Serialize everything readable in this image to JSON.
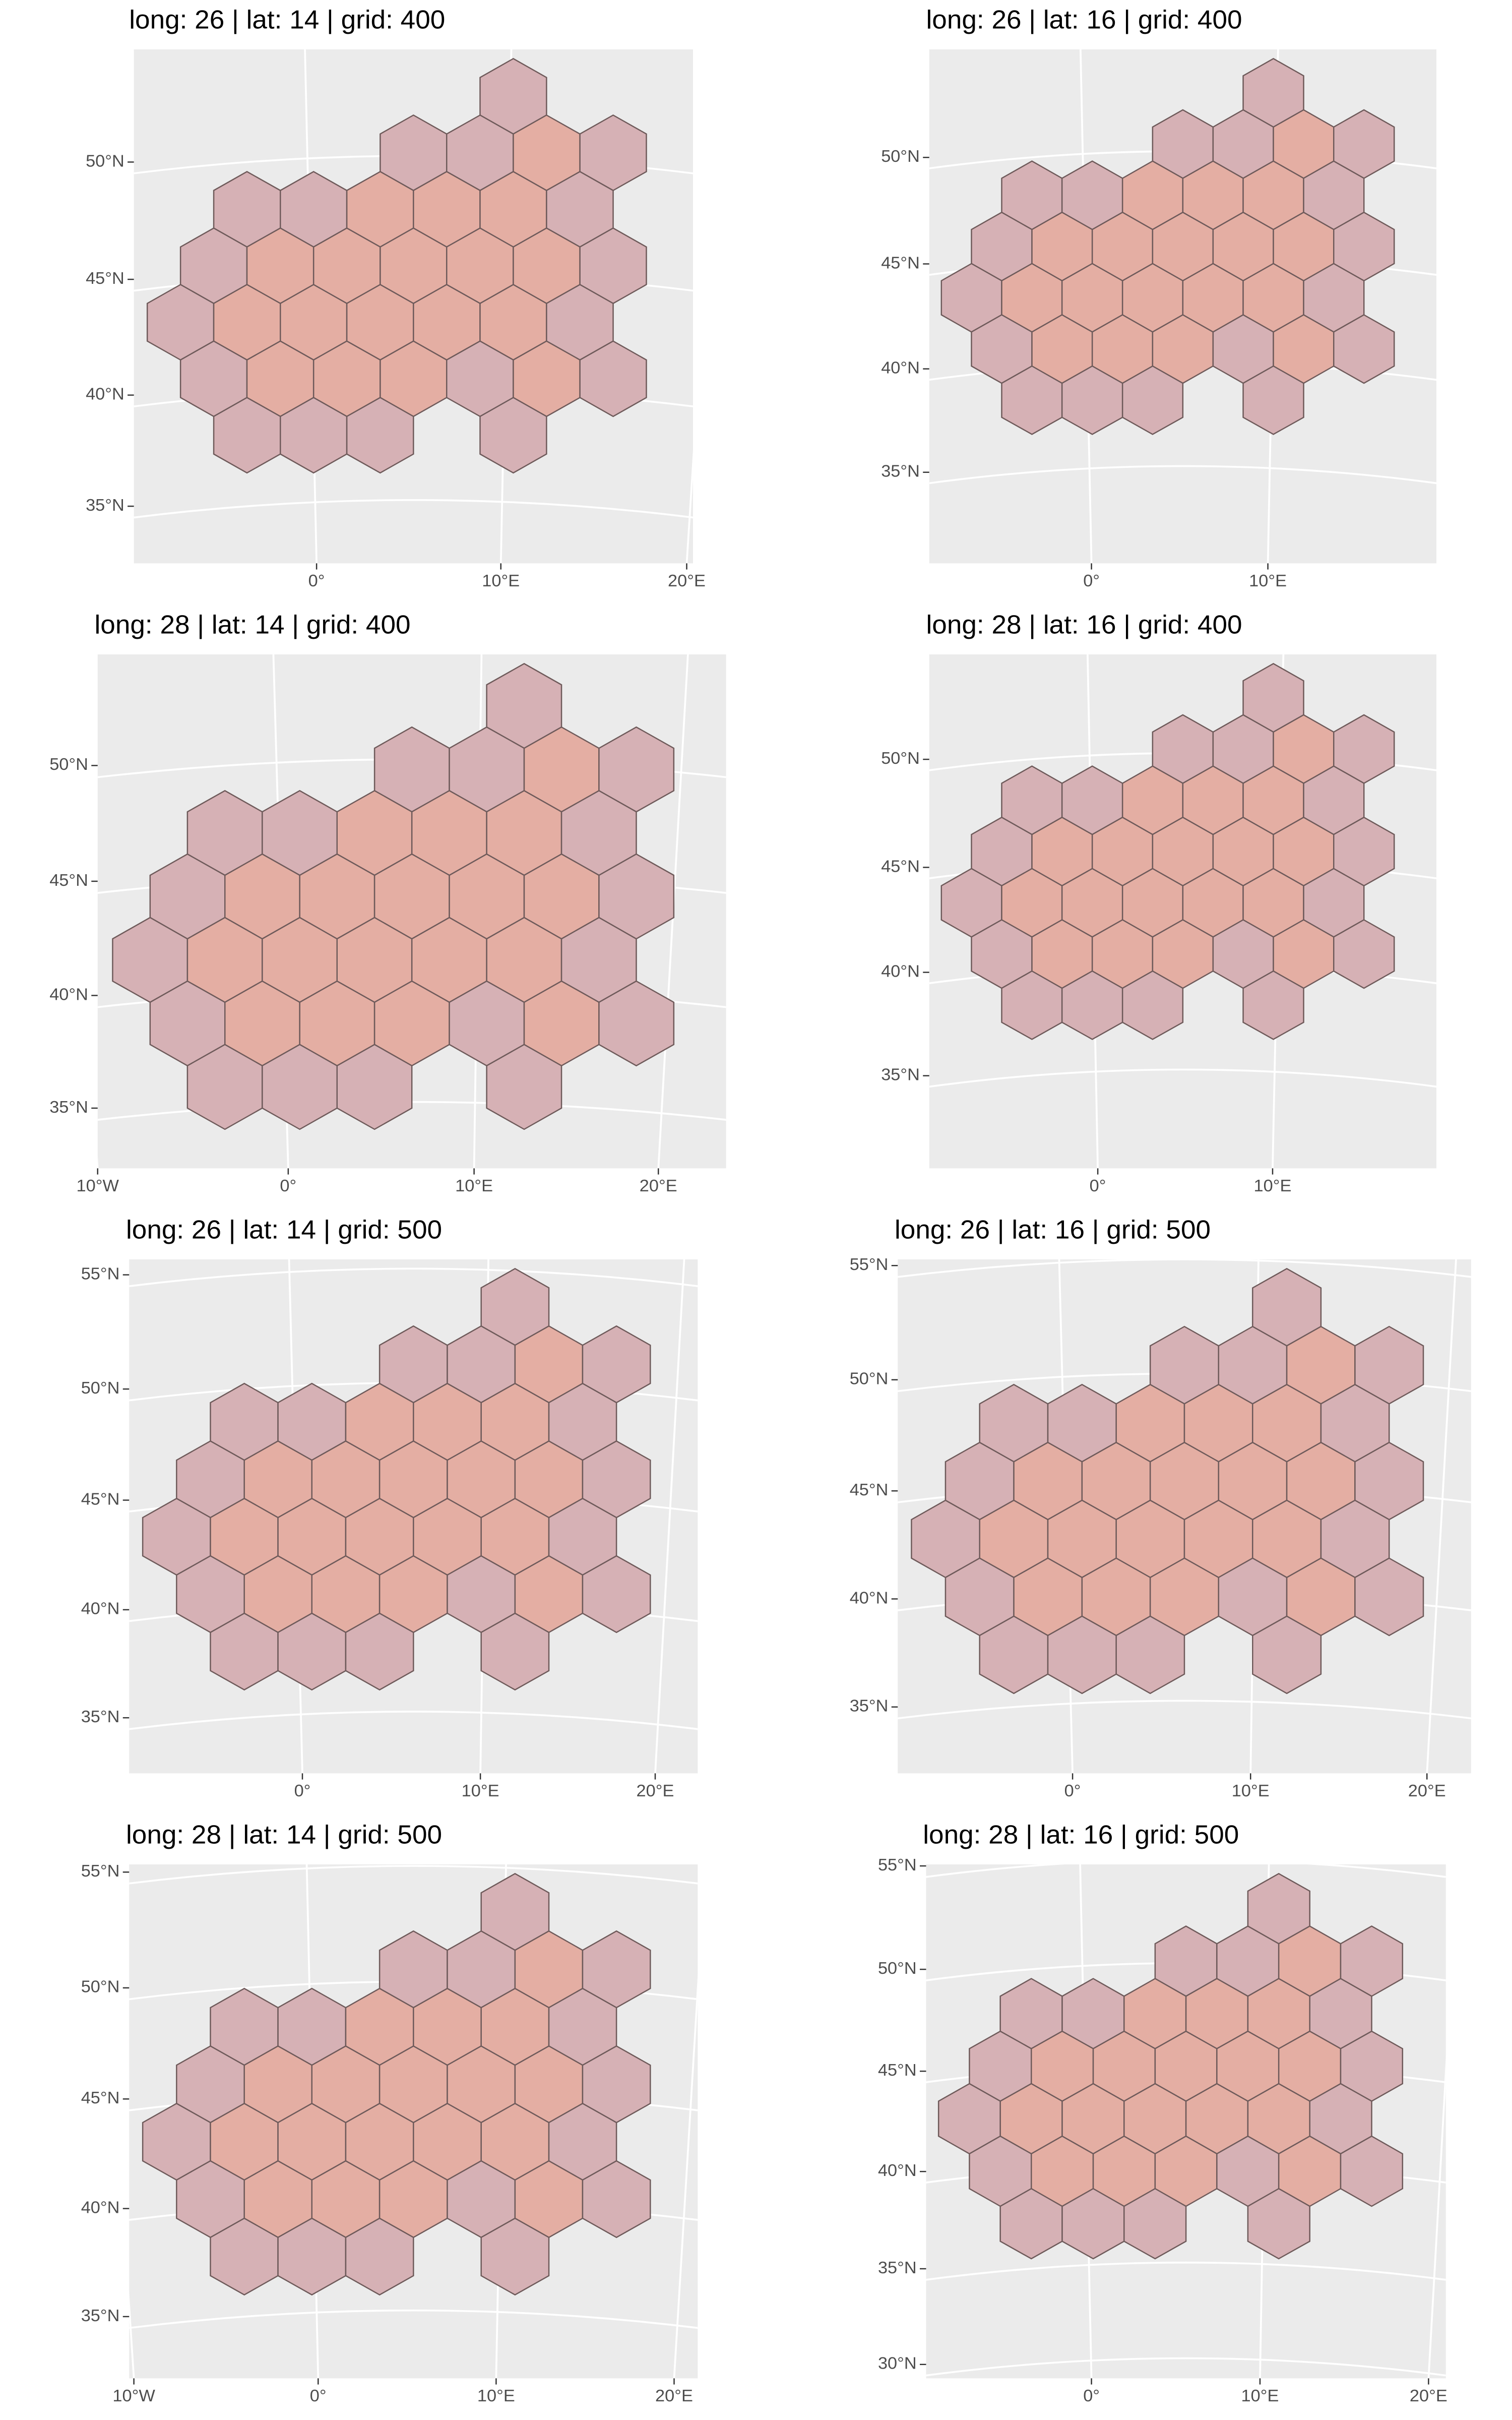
{
  "panels": [
    {
      "title": "long: 26 | lat: 14 | grid: 400",
      "lat_labels": [
        "50°N",
        "45°N",
        "40°N",
        "35°N"
      ],
      "lon_labels": [
        "0°",
        "10°E",
        "20°E"
      ]
    },
    {
      "title": "long: 26 | lat: 16 | grid: 400",
      "lat_labels": [
        "50°N",
        "45°N",
        "40°N",
        "35°N"
      ],
      "lon_labels": [
        "0°",
        "10°E"
      ]
    },
    {
      "title": "long: 28 | lat: 14 | grid: 400",
      "lat_labels": [
        "50°N",
        "45°N",
        "40°N",
        "35°N"
      ],
      "lon_labels": [
        "10°W",
        "0°",
        "10°E",
        "20°E"
      ]
    },
    {
      "title": "long: 28 | lat: 16 | grid: 400",
      "lat_labels": [
        "50°N",
        "45°N",
        "40°N",
        "35°N"
      ],
      "lon_labels": [
        "0°",
        "10°E"
      ]
    },
    {
      "title": "long: 26 | lat: 14 | grid: 500",
      "lat_labels": [
        "55°N",
        "50°N",
        "45°N",
        "40°N",
        "35°N"
      ],
      "lon_labels": [
        "0°",
        "10°E",
        "20°E"
      ]
    },
    {
      "title": "long: 26 | lat: 16 | grid: 500",
      "lat_labels": [
        "55°N",
        "50°N",
        "45°N",
        "40°N",
        "35°N"
      ],
      "lon_labels": [
        "0°",
        "10°E",
        "20°E"
      ]
    },
    {
      "title": "long: 28 | lat: 14 | grid: 500",
      "lat_labels": [
        "55°N",
        "50°N",
        "45°N",
        "40°N",
        "35°N"
      ],
      "lon_labels": [
        "10°W",
        "0°",
        "10°E",
        "20°E"
      ]
    },
    {
      "title": "long: 28 | lat: 16 | grid: 500",
      "lat_labels": [
        "55°N",
        "50°N",
        "45°N",
        "40°N",
        "35°N",
        "30°N"
      ],
      "lon_labels": [
        "0°",
        "10°E",
        "20°E"
      ]
    }
  ]
}
